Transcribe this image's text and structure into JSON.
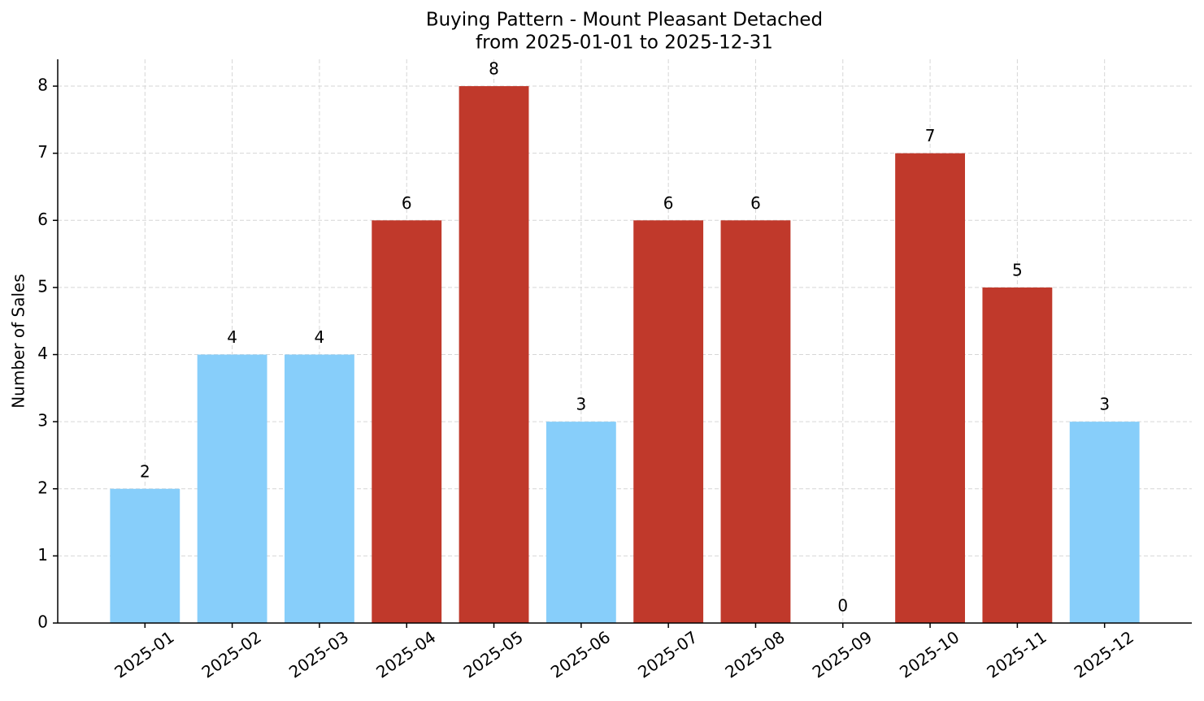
{
  "chart_data": {
    "type": "bar",
    "title": "Buying Pattern - Mount Pleasant Detached",
    "subtitle": "from 2025-01-01 to 2025-12-31",
    "y_label": "Number of Sales",
    "categories": [
      "2025-01",
      "2025-02",
      "2025-03",
      "2025-04",
      "2025-05",
      "2025-06",
      "2025-07",
      "2025-08",
      "2025-09",
      "2025-10",
      "2025-11",
      "2025-12"
    ],
    "values": [
      2,
      4,
      4,
      6,
      8,
      3,
      6,
      6,
      0,
      7,
      5,
      3
    ],
    "colors": [
      "#87cefa",
      "#87cefa",
      "#87cefa",
      "#c0392b",
      "#c0392b",
      "#87cefa",
      "#c0392b",
      "#c0392b",
      "#87cefa",
      "#c0392b",
      "#c0392b",
      "#87cefa"
    ],
    "ylim": [
      0,
      8.4
    ],
    "yticks": [
      0,
      1,
      2,
      3,
      4,
      5,
      6,
      7,
      8
    ],
    "grid": true
  }
}
